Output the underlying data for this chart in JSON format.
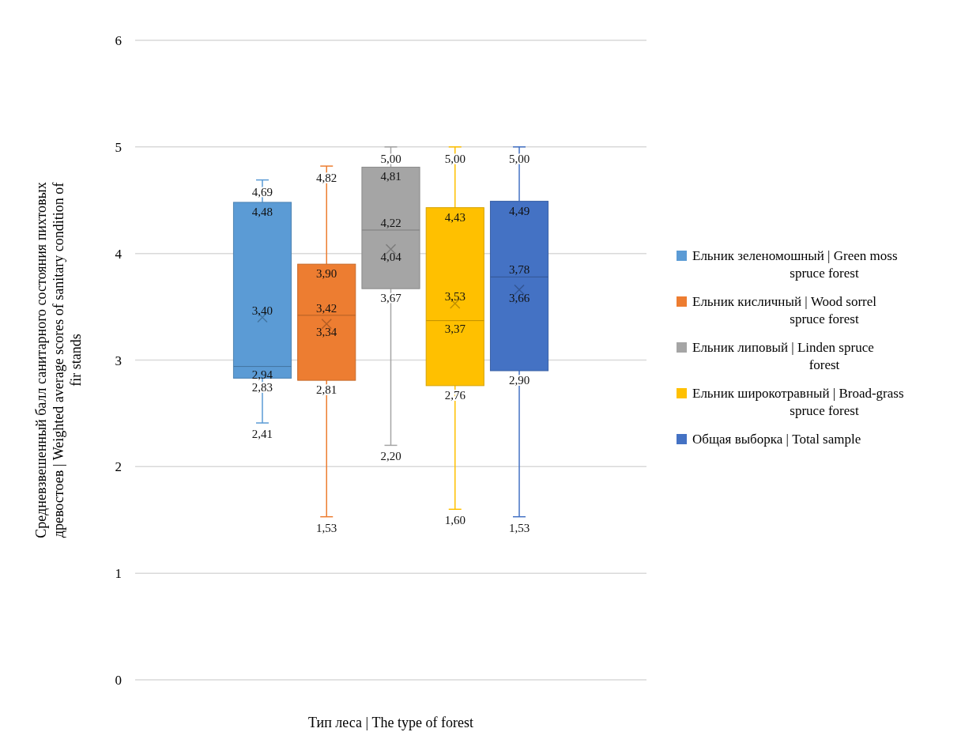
{
  "chart_data": {
    "type": "box",
    "categories": [
      null
    ],
    "xlabel": "Тип леса | The type of forest",
    "ylabel": "Средневзвешенный балл санитарного состояния пихтовых древостоев | Weighted average scores of sanitary condition of fir stands",
    "ylim": [
      0,
      6
    ],
    "yticks": [
      0,
      1,
      2,
      3,
      4,
      5,
      6
    ],
    "grid": "y",
    "legend": "right",
    "data_labels": true,
    "marker": "cross",
    "series": [
      {
        "name": "Ельник зеленомошный | Green moss spruce forest",
        "color": "#5b9bd5",
        "boxes": [
          {
            "low": 2.41,
            "q1": 2.83,
            "median": 2.94,
            "q3": 4.48,
            "high": 4.69,
            "mean": 3.4
          }
        ],
        "value_labels": [
          [
            "2,41",
            "2,83",
            "2,94",
            "4,48",
            "4,69",
            "3,40"
          ]
        ]
      },
      {
        "name": "Ельник кисличный | Wood sorrel spruce forest",
        "color": "#ed7d31",
        "boxes": [
          {
            "low": 1.53,
            "q1": 2.81,
            "median": 3.42,
            "q3": 3.9,
            "high": 4.82,
            "mean": 3.34
          }
        ],
        "value_labels": [
          [
            "1,53",
            "2,81",
            "3,42",
            "3,90",
            "4,82",
            "3,34"
          ]
        ]
      },
      {
        "name": "Ельник липовый | Linden spruce forest",
        "color": "#a5a5a5",
        "boxes": [
          {
            "low": 2.2,
            "q1": 3.67,
            "median": 4.22,
            "q3": 4.81,
            "high": 5.0,
            "mean": 4.04
          }
        ],
        "value_labels": [
          [
            "2,20",
            "3,67",
            "4,22",
            "4,81",
            "5,00",
            "4,04"
          ]
        ]
      },
      {
        "name": "Ельник широкотравный | Broad-grass spruce forest",
        "color": "#ffc000",
        "boxes": [
          {
            "low": 1.6,
            "q1": 2.76,
            "median": 3.37,
            "q3": 4.43,
            "high": 5.0,
            "mean": 3.53
          }
        ],
        "value_labels": [
          [
            "1,60",
            "2,76",
            "3,37",
            "4,43",
            "5,00",
            "3,53"
          ]
        ]
      },
      {
        "name": "Общая выборка | Total sample",
        "color": "#4472c4",
        "boxes": [
          {
            "low": 1.53,
            "q1": 2.9,
            "median": 3.78,
            "q3": 4.49,
            "high": 5.0,
            "mean": 3.66
          }
        ],
        "value_labels": [
          [
            "1,53",
            "2,90",
            "3,78",
            "4,49",
            "5,00",
            "3,66"
          ]
        ]
      }
    ]
  }
}
